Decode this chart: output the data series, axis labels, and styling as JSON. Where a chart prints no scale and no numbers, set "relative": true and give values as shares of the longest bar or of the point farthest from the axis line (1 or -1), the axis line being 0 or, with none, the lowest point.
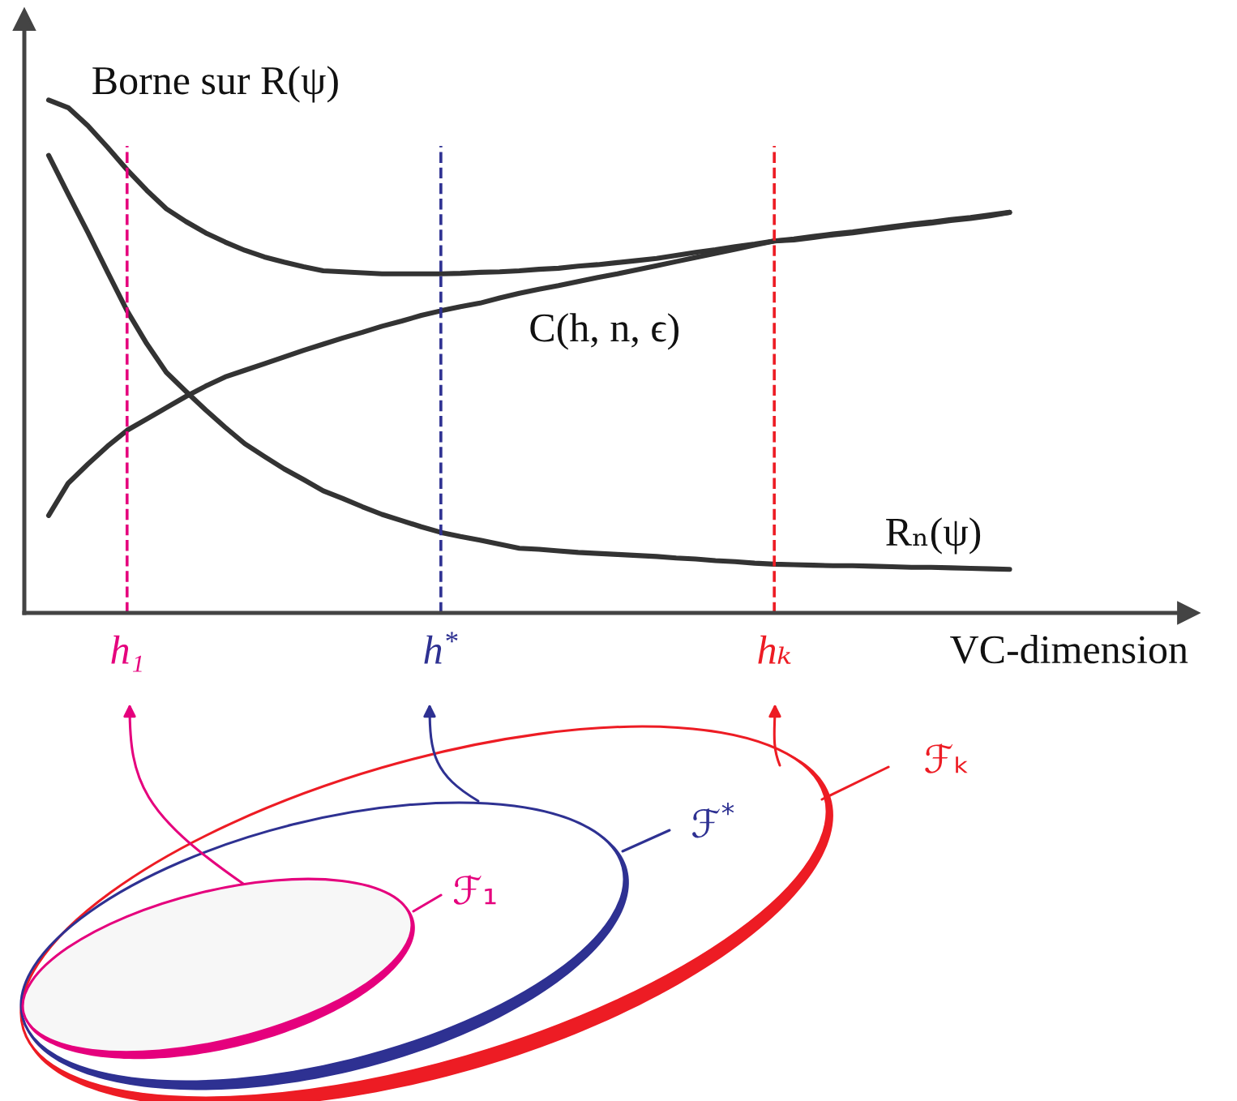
{
  "chart_data": {
    "type": "line",
    "relative": true,
    "xlabel": "VC-dimension",
    "tick_labels": "x",
    "categories": [
      null,
      null,
      null,
      null,
      "h₁",
      null,
      null,
      null,
      null,
      null,
      null,
      null,
      null,
      null,
      null,
      null,
      null,
      null,
      null,
      null,
      "h$^{*}$",
      null,
      null,
      null,
      null,
      null,
      null,
      null,
      null,
      null,
      null,
      null,
      null,
      null,
      null,
      null,
      null,
      "hₖ",
      null,
      null,
      null,
      null,
      null,
      null,
      null,
      null,
      null,
      null,
      null,
      null
    ],
    "series": [
      {
        "name": "Borne sur R(ψ)",
        "color": "#333333",
        "values": [
          1.0,
          0.985,
          0.95,
          0.908,
          0.864,
          0.824,
          0.788,
          0.763,
          0.741,
          0.723,
          0.707,
          0.694,
          0.684,
          0.675,
          0.667,
          0.665,
          0.663,
          0.661,
          0.661,
          0.661,
          0.661,
          0.662,
          0.664,
          0.665,
          0.667,
          0.67,
          0.672,
          0.676,
          0.679,
          0.683,
          0.687,
          0.691,
          0.697,
          0.703,
          0.708,
          0.714,
          0.719,
          0.725,
          0.729,
          0.734,
          0.739,
          0.743,
          0.748,
          0.753,
          0.758,
          0.762,
          0.767,
          0.771,
          0.776,
          0.781
        ]
      },
      {
        "name": "C(h, n, ϵ)",
        "color": "#333333",
        "values": [
          0.19,
          0.253,
          0.29,
          0.325,
          0.356,
          0.378,
          0.4,
          0.422,
          0.442,
          0.46,
          0.473,
          0.486,
          0.499,
          0.512,
          0.524,
          0.536,
          0.547,
          0.559,
          0.569,
          0.58,
          0.589,
          0.597,
          0.604,
          0.614,
          0.623,
          0.631,
          0.638,
          0.646,
          0.654,
          0.661,
          0.669,
          0.677,
          0.685,
          0.693,
          0.701,
          0.709,
          0.717,
          0.725,
          0.727,
          0.732,
          0.737,
          0.741,
          0.746,
          0.751,
          0.756,
          0.76,
          0.765,
          0.769,
          0.774,
          0.781
        ]
      },
      {
        "name": "Rₙ(ψ)",
        "color": "#333333",
        "values": [
          0.892,
          0.816,
          0.742,
          0.665,
          0.589,
          0.525,
          0.469,
          0.432,
          0.396,
          0.362,
          0.33,
          0.305,
          0.281,
          0.26,
          0.238,
          0.223,
          0.207,
          0.192,
          0.18,
          0.168,
          0.157,
          0.149,
          0.142,
          0.134,
          0.126,
          0.124,
          0.121,
          0.118,
          0.116,
          0.114,
          0.112,
          0.11,
          0.107,
          0.105,
          0.102,
          0.1,
          0.097,
          0.095,
          0.094,
          0.093,
          0.092,
          0.092,
          0.091,
          0.09,
          0.089,
          0.089,
          0.088,
          0.087,
          0.086,
          0.085
        ]
      }
    ],
    "ref_lines": [
      {
        "axis": "x",
        "value": "h₁",
        "color": "#e5007d",
        "line_style": "dashed"
      },
      {
        "axis": "x",
        "value": "h$^{*}$",
        "color": "#2e3192",
        "line_style": "dashed"
      },
      {
        "axis": "x",
        "value": "hₖ",
        "color": "#ed1c24",
        "line_style": "dashed"
      }
    ],
    "annotations": [
      "ℱ₁",
      "ℱ$^{*}$",
      "ℱₖ"
    ]
  }
}
